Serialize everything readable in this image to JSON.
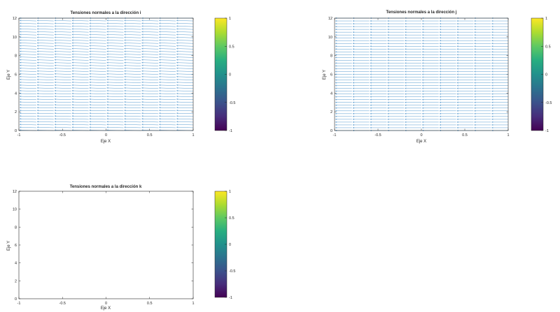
{
  "chart_data": [
    {
      "type": "quiver",
      "title": "Tensiones normales a la dirección i",
      "xlabel": "Eje X",
      "ylabel": "Eje Y",
      "xlim": [
        -1,
        1
      ],
      "ylim": [
        0,
        12
      ],
      "xticks": [
        "-1",
        "-0.5",
        "0",
        "0.5",
        "1"
      ],
      "yticks": [
        "0",
        "2",
        "4",
        "6",
        "8",
        "10",
        "12"
      ],
      "x_columns": [
        -0.8,
        -0.6,
        -0.4,
        -0.2,
        0,
        0.2,
        0.4,
        0.6,
        0.8,
        1.0
      ],
      "y_spacing": 0.3,
      "vector": {
        "u": 0.19,
        "v": 0.05
      },
      "arrow_color": "#3f8cc8",
      "colorbar": {
        "ticks": [
          "-1",
          "-0.5",
          "0",
          "0.5",
          "1"
        ],
        "range": [
          -1,
          1
        ],
        "colormap": "viridis"
      }
    },
    {
      "type": "quiver",
      "title": "Tensiones normales a la dirección j",
      "xlabel": "Eje X",
      "ylabel": "Eje Y",
      "xlim": [
        -1,
        1
      ],
      "ylim": [
        0,
        12
      ],
      "xticks": [
        "-1",
        "-0.5",
        "0",
        "0.5",
        "1"
      ],
      "yticks": [
        "0",
        "2",
        "4",
        "6",
        "8",
        "10",
        "12"
      ],
      "x_columns": [
        -0.8,
        -0.6,
        -0.4,
        -0.2,
        0,
        0.2,
        0.4,
        0.6,
        0.8,
        1.0
      ],
      "y_spacing": 0.3,
      "vector": {
        "u": 0.19,
        "v": 0.0
      },
      "arrow_color": "#3f8cc8",
      "colorbar": {
        "ticks": [
          "-1",
          "-0.5",
          "0",
          "0.5",
          "1"
        ],
        "range": [
          -1,
          1
        ],
        "colormap": "viridis"
      }
    },
    {
      "type": "quiver",
      "title": "Tensiones normales a la dirección k",
      "xlabel": "Eje X",
      "ylabel": "Eje Y",
      "xlim": [
        -1,
        1
      ],
      "ylim": [
        0,
        12
      ],
      "xticks": [
        "-1",
        "-0.5",
        "0",
        "0.5",
        "1"
      ],
      "yticks": [
        "0",
        "2",
        "4",
        "6",
        "8",
        "10",
        "12"
      ],
      "x_columns": [],
      "y_spacing": 0.3,
      "vector": {
        "u": 0,
        "v": 0
      },
      "arrow_color": "#3f8cc8",
      "colorbar": {
        "ticks": [
          "-1",
          "-0.5",
          "0",
          "0.5",
          "1"
        ],
        "range": [
          -1,
          1
        ],
        "colormap": "viridis"
      }
    }
  ]
}
